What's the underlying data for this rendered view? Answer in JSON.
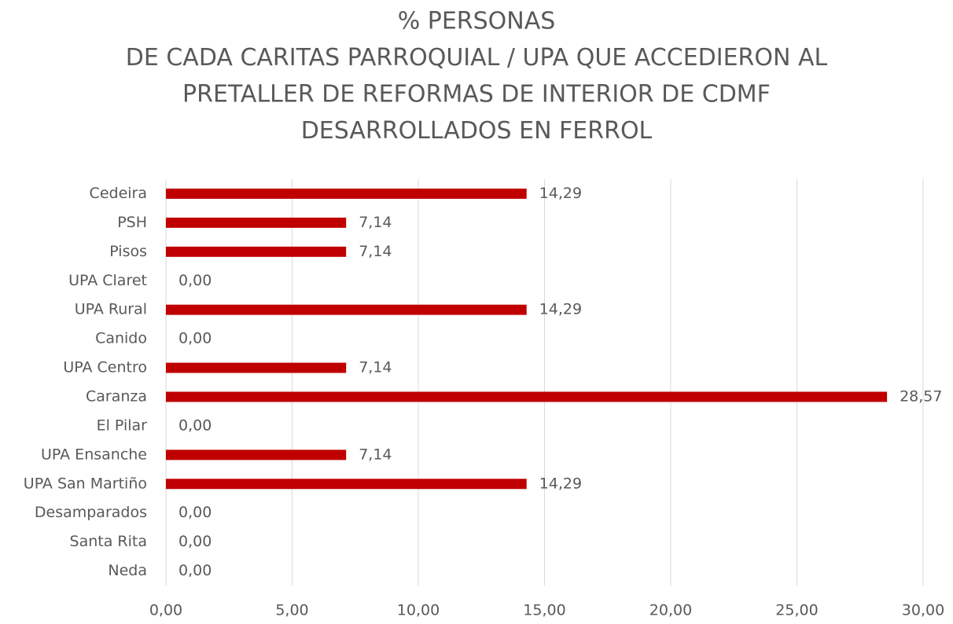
{
  "chart_data": {
    "type": "bar",
    "orientation": "horizontal",
    "title": [
      "% PERSONAS",
      "DE CADA CARITAS PARROQUIAL / UPA QUE ACCEDIERON AL",
      "PRETALLER DE REFORMAS DE INTERIOR DE CDMF",
      "DESARROLLADOS EN FERROL"
    ],
    "categories": [
      "Cedeira",
      "PSH",
      "Pisos",
      "UPA Claret",
      "UPA Rural",
      "Canido",
      "UPA Centro",
      "Caranza",
      "El Pilar",
      "UPA Ensanche",
      "UPA San Martiño",
      "Desamparados",
      "Santa Rita",
      "Neda"
    ],
    "values": [
      14.29,
      7.14,
      7.14,
      0,
      14.29,
      0,
      7.14,
      28.57,
      0,
      7.14,
      14.29,
      0,
      0,
      0
    ],
    "value_labels": [
      "14,29",
      "7,14",
      "7,14",
      "0,00",
      "14,29",
      "0,00",
      "7,14",
      "28,57",
      "0,00",
      "7,14",
      "14,29",
      "0,00",
      "0,00",
      "0,00"
    ],
    "color": "#c00000",
    "xlim": [
      0,
      30
    ],
    "xticks": [
      {
        "value": 0,
        "label": "0,00"
      },
      {
        "value": 5,
        "label": "5,00"
      },
      {
        "value": 10,
        "label": "10,00"
      },
      {
        "value": 15,
        "label": "15,00"
      },
      {
        "value": 20,
        "label": "20,00"
      },
      {
        "value": 25,
        "label": "25,00"
      },
      {
        "value": 30,
        "label": "30,00"
      }
    ],
    "grid": true
  }
}
